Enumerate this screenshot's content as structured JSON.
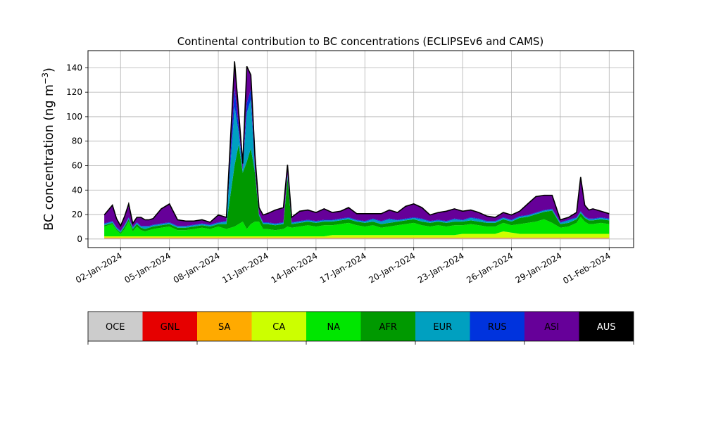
{
  "chart_data": {
    "type": "area",
    "title": "Continental contribution to BC concentrations (ECLIPSEv6 and CAMS)",
    "ylabel": "BC concentration (ng m",
    "ylabel_sup": "−3",
    "ylabel_end": ")",
    "xlabel": "",
    "ylim": [
      -7,
      154
    ],
    "yticks": [
      0,
      20,
      40,
      60,
      80,
      100,
      120,
      140
    ],
    "xlim": [
      "2023-12-31T00:00",
      "2024-02-02T12:00"
    ],
    "xticks": [
      {
        "date": "2024-01-02",
        "label": "02-Jan-2024"
      },
      {
        "date": "2024-01-05",
        "label": "05-Jan-2024"
      },
      {
        "date": "2024-01-08",
        "label": "08-Jan-2024"
      },
      {
        "date": "2024-01-11",
        "label": "11-Jan-2024"
      },
      {
        "date": "2024-01-14",
        "label": "14-Jan-2024"
      },
      {
        "date": "2024-01-17",
        "label": "17-Jan-2024"
      },
      {
        "date": "2024-01-20",
        "label": "20-Jan-2024"
      },
      {
        "date": "2024-01-23",
        "label": "23-Jan-2024"
      },
      {
        "date": "2024-01-26",
        "label": "26-Jan-2024"
      },
      {
        "date": "2024-01-29",
        "label": "29-Jan-2024"
      },
      {
        "date": "2024-02-01",
        "label": "01-Feb-2024"
      }
    ],
    "grid": true,
    "x": [
      "2024-01-01T00:00",
      "2024-01-01T12:00",
      "2024-01-01T18:00",
      "2024-01-02T00:00",
      "2024-01-02T06:00",
      "2024-01-02T12:00",
      "2024-01-02T18:00",
      "2024-01-03T00:00",
      "2024-01-03T06:00",
      "2024-01-03T12:00",
      "2024-01-03T18:00",
      "2024-01-04T00:00",
      "2024-01-04T12:00",
      "2024-01-05T00:00",
      "2024-01-05T12:00",
      "2024-01-06T00:00",
      "2024-01-06T12:00",
      "2024-01-07T00:00",
      "2024-01-07T12:00",
      "2024-01-08T00:00",
      "2024-01-08T12:00",
      "2024-01-09T00:00",
      "2024-01-09T06:00",
      "2024-01-09T12:00",
      "2024-01-09T18:00",
      "2024-01-10T00:00",
      "2024-01-10T06:00",
      "2024-01-10T12:00",
      "2024-01-10T18:00",
      "2024-01-11T00:00",
      "2024-01-11T12:00",
      "2024-01-12T00:00",
      "2024-01-12T06:00",
      "2024-01-12T12:00",
      "2024-01-13T00:00",
      "2024-01-13T12:00",
      "2024-01-14T00:00",
      "2024-01-14T12:00",
      "2024-01-15T00:00",
      "2024-01-15T12:00",
      "2024-01-16T00:00",
      "2024-01-16T12:00",
      "2024-01-17T00:00",
      "2024-01-17T12:00",
      "2024-01-18T00:00",
      "2024-01-18T12:00",
      "2024-01-19T00:00",
      "2024-01-19T12:00",
      "2024-01-20T00:00",
      "2024-01-20T12:00",
      "2024-01-21T00:00",
      "2024-01-21T12:00",
      "2024-01-22T00:00",
      "2024-01-22T12:00",
      "2024-01-23T00:00",
      "2024-01-23T12:00",
      "2024-01-24T00:00",
      "2024-01-24T12:00",
      "2024-01-25T00:00",
      "2024-01-25T12:00",
      "2024-01-26T00:00",
      "2024-01-26T12:00",
      "2024-01-27T00:00",
      "2024-01-27T12:00",
      "2024-01-28T00:00",
      "2024-01-28T12:00",
      "2024-01-29T00:00",
      "2024-01-29T12:00",
      "2024-01-30T00:00",
      "2024-01-30T06:00",
      "2024-01-30T12:00",
      "2024-01-30T18:00",
      "2024-01-31T00:00",
      "2024-01-31T12:00",
      "2024-02-01T00:00"
    ],
    "series": [
      {
        "name": "OCE",
        "color": "#cccccc",
        "values": [
          0.5,
          0.5,
          0.5,
          0.5,
          0.5,
          0.5,
          0.5,
          0.5,
          0.5,
          0.5,
          0.5,
          0.5,
          0.5,
          0.5,
          0.5,
          0.5,
          0.5,
          0.5,
          0.5,
          0.5,
          0.5,
          0.5,
          0.5,
          0.5,
          0.5,
          0.5,
          0.5,
          0.5,
          0.5,
          0.5,
          0.5,
          0.5,
          0.5,
          0.5,
          0.5,
          0.5,
          0.5,
          0.5,
          0.5,
          0.5,
          0.5,
          0.5,
          0.5,
          0.5,
          0.5,
          0.5,
          0.5,
          0.5,
          0.5,
          0.5,
          0.5,
          0.5,
          0.5,
          0.5,
          0.5,
          0.5,
          0.5,
          0.5,
          0.5,
          0.5,
          0.5,
          0.5,
          0.5,
          0.5,
          0.5,
          0.5,
          0.5,
          0.5,
          0.5,
          0.5,
          0.5,
          0.5,
          0.5,
          0.5,
          0.5
        ]
      },
      {
        "name": "GNL",
        "color": "#e60000",
        "values": [
          0.2,
          0.2,
          0.2,
          0.2,
          0.2,
          0.2,
          0.2,
          0.2,
          0.2,
          0.2,
          0.2,
          0.2,
          0.2,
          0.2,
          0.2,
          0.2,
          0.2,
          0.2,
          0.2,
          0.2,
          0.2,
          0.2,
          0.2,
          0.2,
          0.2,
          0.2,
          0.2,
          0.2,
          0.2,
          0.2,
          0.2,
          0.2,
          0.2,
          0.2,
          0.2,
          0.2,
          0.2,
          0.2,
          0.2,
          0.2,
          0.2,
          0.2,
          0.2,
          0.2,
          0.2,
          0.2,
          0.2,
          0.2,
          0.2,
          0.2,
          0.2,
          0.2,
          0.2,
          0.2,
          0.2,
          0.2,
          0.2,
          0.2,
          0.2,
          0.2,
          0.2,
          0.2,
          0.2,
          0.2,
          0.2,
          0.2,
          0.2,
          0.2,
          0.2,
          0.2,
          0.2,
          0.2,
          0.2,
          0.2,
          0.2
        ]
      },
      {
        "name": "SA",
        "color": "#ffaa00",
        "values": [
          0.5,
          0.5,
          0.5,
          0.5,
          0.5,
          0.5,
          0.5,
          0.5,
          0.5,
          0.5,
          0.5,
          0.5,
          0.5,
          0.5,
          0.5,
          0.5,
          0.5,
          0.5,
          0.5,
          0.5,
          0.5,
          0.5,
          0.5,
          0.5,
          0.5,
          0.5,
          0.5,
          0.5,
          0.5,
          0.5,
          0.5,
          0.5,
          0.5,
          0.5,
          0.5,
          0.5,
          0.5,
          0.5,
          0.5,
          0.5,
          0.5,
          0.5,
          0.5,
          0.5,
          0.5,
          0.5,
          0.5,
          0.5,
          0.5,
          0.5,
          0.5,
          0.5,
          0.5,
          0.5,
          0.5,
          0.5,
          0.5,
          0.5,
          0.5,
          0.5,
          0.5,
          0.5,
          0.5,
          0.5,
          0.5,
          0.5,
          0.5,
          0.5,
          0.5,
          0.5,
          0.5,
          0.5,
          0.5,
          0.5,
          0.5
        ]
      },
      {
        "name": "CA",
        "color": "#ccff00",
        "values": [
          1,
          1,
          1,
          1,
          1,
          1,
          1,
          1,
          1,
          1,
          1,
          1,
          1,
          1,
          1,
          1,
          1,
          1,
          1,
          1,
          1,
          1,
          1,
          1,
          1,
          1,
          1,
          1,
          1,
          1,
          1,
          1,
          1,
          1,
          1,
          1,
          1,
          1,
          2,
          2,
          2,
          2,
          2,
          2,
          2,
          2,
          2,
          2,
          2,
          2,
          2,
          2,
          2,
          2,
          3,
          3,
          3,
          3,
          3,
          5,
          4,
          3,
          3,
          3,
          3,
          3,
          3,
          3,
          3,
          3,
          3,
          3,
          3,
          3,
          3
        ]
      },
      {
        "name": "NA",
        "color": "#00e600",
        "values": [
          8,
          10,
          5,
          2,
          6,
          12,
          4,
          8,
          5,
          4,
          5,
          6,
          7,
          8,
          5,
          5,
          6,
          7,
          6,
          8,
          6,
          8,
          10,
          12,
          6,
          10,
          12,
          12,
          6,
          6,
          5,
          6,
          8,
          7,
          8,
          9,
          8,
          9,
          8,
          9,
          10,
          8,
          7,
          8,
          6,
          7,
          8,
          9,
          10,
          8,
          7,
          8,
          7,
          8,
          7,
          8,
          7,
          6,
          6,
          7,
          6,
          8,
          9,
          10,
          12,
          9,
          5,
          6,
          9,
          14,
          10,
          8,
          8,
          9,
          8
        ]
      },
      {
        "name": "AFR",
        "color": "#009900",
        "values": [
          1,
          1,
          1,
          1,
          2,
          2,
          2,
          2,
          2,
          2,
          2,
          2,
          2,
          2,
          2,
          2,
          2,
          2,
          2,
          2,
          4,
          50,
          65,
          40,
          55,
          62,
          40,
          5,
          4,
          4,
          4,
          4,
          40,
          3,
          3,
          3,
          3,
          3,
          3,
          3,
          3,
          3,
          3,
          3,
          3,
          3,
          3,
          3,
          3,
          3,
          3,
          3,
          3,
          3,
          3,
          3,
          3,
          3,
          3,
          3,
          3,
          5,
          5,
          6,
          6,
          10,
          3,
          3,
          3,
          3,
          3,
          3,
          3,
          3,
          3
        ]
      },
      {
        "name": "EUR",
        "color": "#00a0c0",
        "values": [
          1,
          1,
          1,
          1,
          1,
          1,
          1,
          1,
          1,
          2,
          1,
          1,
          1,
          1,
          1,
          1,
          1,
          1,
          1,
          1,
          2,
          48,
          10,
          2,
          40,
          40,
          2,
          1,
          1,
          1,
          1,
          1,
          2,
          1,
          1,
          1,
          1,
          1,
          1,
          1,
          1,
          1,
          1,
          2,
          2,
          3,
          1,
          1,
          1,
          2,
          1,
          1,
          1,
          2,
          1,
          2,
          2,
          1,
          1,
          1,
          1,
          1,
          1,
          1,
          1,
          1,
          1,
          2,
          1,
          1,
          1,
          1,
          1,
          1,
          1
        ]
      },
      {
        "name": "RUS",
        "color": "#0033dd",
        "values": [
          0.5,
          0.5,
          0.5,
          0.5,
          0.5,
          0.5,
          0.5,
          0.5,
          0.5,
          0.5,
          0.5,
          0.5,
          0.5,
          0.5,
          0.5,
          0.5,
          0.5,
          0.5,
          0.5,
          0.5,
          0.5,
          15,
          5,
          0.5,
          8,
          8,
          0.5,
          0.5,
          0.5,
          0.5,
          0.5,
          0.5,
          0.5,
          0.5,
          0.5,
          0.5,
          0.5,
          0.5,
          0.5,
          0.5,
          0.5,
          0.5,
          0.5,
          0.5,
          0.5,
          0.5,
          0.5,
          0.5,
          0.5,
          0.5,
          0.5,
          0.5,
          0.5,
          0.5,
          0.5,
          0.5,
          0.5,
          0.5,
          0.5,
          0.5,
          0.5,
          0.5,
          0.5,
          0.5,
          0.5,
          0.5,
          0.5,
          0.5,
          0.5,
          0.5,
          0.5,
          0.5,
          0.5,
          0.5,
          0.5
        ]
      },
      {
        "name": "ASI",
        "color": "#660099",
        "values": [
          7,
          13,
          7,
          4,
          7,
          11,
          3,
          4,
          7,
          5,
          5,
          5,
          12,
          15,
          5,
          4,
          3,
          3,
          2,
          6,
          3,
          22,
          12,
          5,
          30,
          12,
          12,
          5,
          6,
          7,
          11,
          12,
          8,
          4,
          8,
          8,
          7,
          9,
          6,
          6,
          8,
          5,
          6,
          4,
          6,
          7,
          6,
          10,
          11,
          9,
          5,
          6,
          8,
          8,
          7,
          6,
          5,
          4,
          3,
          4,
          4,
          4,
          9,
          13,
          12,
          11,
          2,
          2,
          4,
          28,
          9,
          7,
          8,
          5,
          4
        ]
      },
      {
        "name": "AUS",
        "color": "#000000",
        "values": [
          0,
          0,
          0,
          0,
          0,
          0,
          0,
          0,
          0,
          0,
          0,
          0,
          0,
          0,
          0,
          0,
          0,
          0,
          0,
          0,
          0,
          0,
          0,
          0,
          0,
          0,
          0,
          0,
          0,
          0,
          0,
          0,
          0,
          0,
          0,
          0,
          0,
          0,
          0,
          0,
          0,
          0,
          0,
          0,
          0,
          0,
          0,
          0,
          0,
          0,
          0,
          0,
          0,
          0,
          0,
          0,
          0,
          0,
          0,
          0,
          0,
          0,
          0,
          0,
          0,
          0,
          0,
          0,
          0,
          0,
          0,
          0,
          0,
          0,
          0
        ]
      }
    ]
  }
}
